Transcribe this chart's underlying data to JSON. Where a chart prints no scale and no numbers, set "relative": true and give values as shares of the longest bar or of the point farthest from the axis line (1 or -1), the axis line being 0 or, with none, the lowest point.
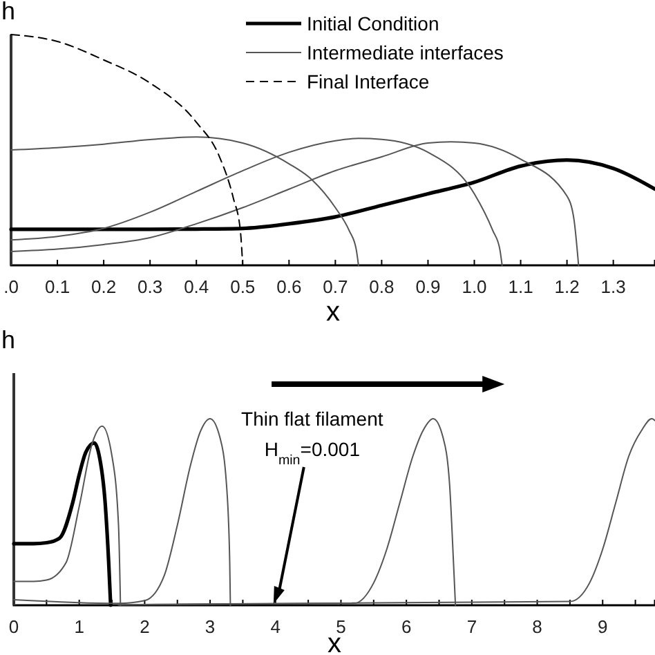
{
  "chart_data": [
    {
      "type": "line",
      "ylabel": "h",
      "xlabel": "x",
      "relative": true,
      "legend": "top right",
      "tick_labels": "x",
      "xlim": [
        0,
        1.39
      ],
      "xticks": [
        {
          "value": 0,
          "label": ".0"
        },
        0.1,
        0.2,
        0.3,
        0.4,
        0.5,
        0.6,
        0.7,
        0.8,
        0.9,
        {
          "value": 1,
          "label": "1.0"
        },
        1.1,
        1.2,
        1.3
      ],
      "series": [
        {
          "name": "Initial Condition",
          "color": "#000000",
          "line_style": "solid",
          "x": [
            0,
            0.1,
            0.2,
            0.3,
            0.4,
            0.5,
            0.6,
            0.7,
            0.8,
            0.9,
            1.0,
            1.1,
            1.2,
            1.3,
            1.39
          ],
          "values": [
            0.156,
            0.156,
            0.156,
            0.156,
            0.157,
            0.16,
            0.18,
            0.21,
            0.26,
            0.31,
            0.36,
            0.43,
            0.456,
            0.42,
            0.33
          ]
        },
        {
          "name": "Intermediate interfaces",
          "color": "#555555",
          "line_style": "solid",
          "x": [
            0,
            0.1,
            0.2,
            0.3,
            0.4,
            0.5,
            0.6,
            0.65,
            0.7,
            0.73,
            0.745,
            0.75
          ],
          "values": [
            0.5,
            0.51,
            0.525,
            0.545,
            0.556,
            0.53,
            0.44,
            0.37,
            0.25,
            0.15,
            0.07,
            0
          ]
        },
        {
          "color": "#555555",
          "line_style": "solid",
          "x": [
            0,
            0.1,
            0.2,
            0.3,
            0.4,
            0.5,
            0.6,
            0.7,
            0.75,
            0.8,
            0.9,
            1.0,
            1.04,
            1.055,
            1.06
          ],
          "values": [
            0.11,
            0.125,
            0.16,
            0.23,
            0.32,
            0.41,
            0.49,
            0.54,
            0.55,
            0.546,
            0.49,
            0.31,
            0.15,
            0.07,
            0
          ]
        },
        {
          "color": "#555555",
          "line_style": "solid",
          "x": [
            0,
            0.1,
            0.2,
            0.3,
            0.4,
            0.5,
            0.6,
            0.7,
            0.8,
            0.9,
            0.95,
            1.0,
            1.1,
            1.2,
            1.215,
            1.225
          ],
          "values": [
            0.06,
            0.07,
            0.09,
            0.12,
            0.18,
            0.25,
            0.33,
            0.41,
            0.47,
            0.53,
            0.535,
            0.53,
            0.46,
            0.3,
            0.2,
            0
          ]
        },
        {
          "name": "Final Interface",
          "color": "#000000",
          "line_style": "dashed",
          "x": [
            0,
            0.1,
            0.2,
            0.3,
            0.4,
            0.45,
            0.48,
            0.495,
            0.5
          ],
          "values": [
            1,
            0.97,
            0.89,
            0.79,
            0.62,
            0.47,
            0.29,
            0.15,
            0
          ]
        }
      ]
    },
    {
      "type": "line",
      "ylabel": "h",
      "xlabel": "x",
      "relative": true,
      "tick_labels": "x",
      "xlim": [
        0,
        9.8
      ],
      "xticks": [
        0,
        {
          "value": 0.5,
          "label": null
        },
        1,
        {
          "value": 1.5,
          "label": null
        },
        2,
        {
          "value": 2.5,
          "label": null
        },
        3,
        {
          "value": 3.5,
          "label": null
        },
        4,
        {
          "value": 4.5,
          "label": null
        },
        5,
        {
          "value": 5.5,
          "label": null
        },
        6,
        {
          "value": 6.5,
          "label": null
        },
        7,
        {
          "value": 7.5,
          "label": null
        },
        8,
        {
          "value": 8.5,
          "label": null
        },
        9,
        {
          "value": 9.5,
          "label": null
        }
      ],
      "annotations": [
        "Thin  flat filament",
        "H$_{min}$=0.001"
      ],
      "series": [
        {
          "color": "#000000",
          "line_style": "solid",
          "x": [
            0,
            0.3,
            0.5,
            0.7,
            0.9,
            1.0,
            1.1,
            1.23,
            1.3,
            1.4,
            1.45,
            1.48
          ],
          "values": [
            0.33,
            0.33,
            0.335,
            0.36,
            0.55,
            0.7,
            0.82,
            0.87,
            0.81,
            0.53,
            0.23,
            0
          ]
        },
        {
          "color": "#555555",
          "line_style": "solid",
          "x": [
            0,
            0.3,
            0.5,
            0.8,
            1.0,
            1.2,
            1.35,
            1.5,
            1.6,
            1.63
          ],
          "values": [
            0.128,
            0.128,
            0.135,
            0.23,
            0.53,
            0.87,
            0.96,
            0.8,
            0.43,
            0
          ]
        },
        {
          "color": "#555555",
          "line_style": "solid",
          "x": [
            0,
            1.6,
            2.0,
            2.3,
            2.5,
            2.7,
            2.85,
            3.0,
            3.15,
            3.25,
            3.3,
            3.31
          ],
          "values": [
            0.03,
            0.01,
            0.025,
            0.16,
            0.43,
            0.75,
            0.93,
            1.0,
            0.9,
            0.65,
            0.23,
            0
          ]
        },
        {
          "color": "#555555",
          "line_style": "solid",
          "x": [
            1.6,
            5.2,
            5.5,
            5.7,
            5.9,
            6.1,
            6.26,
            6.41,
            6.56,
            6.66,
            6.72,
            6.75
          ],
          "values": [
            0.003,
            0.01,
            0.12,
            0.3,
            0.55,
            0.8,
            0.94,
            1.0,
            0.9,
            0.65,
            0.23,
            0
          ]
        },
        {
          "color": "#555555",
          "line_style": "solid",
          "x": [
            1.6,
            8.5,
            8.8,
            9.0,
            9.2,
            9.4,
            9.6,
            9.75,
            9.8
          ],
          "values": [
            0.003,
            0.02,
            0.12,
            0.3,
            0.55,
            0.8,
            0.94,
            1.0,
            0.99
          ]
        }
      ]
    }
  ]
}
